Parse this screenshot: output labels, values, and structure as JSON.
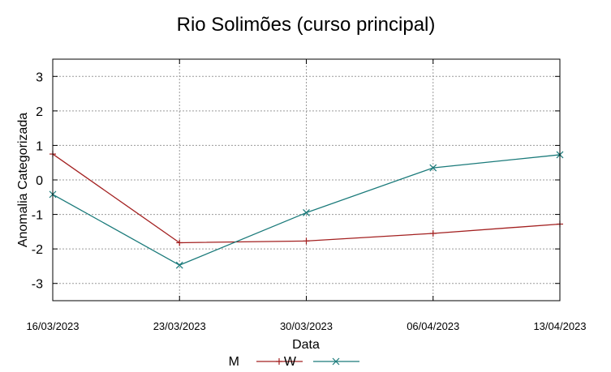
{
  "chart_data": {
    "type": "line",
    "title": "Rio Solimões (curso principal)",
    "xlabel": "Data",
    "ylabel": "Anomalia Categorizada",
    "categories": [
      "16/03/2023",
      "23/03/2023",
      "30/03/2023",
      "06/04/2023",
      "13/04/2023"
    ],
    "ylim": [
      -3.5,
      3.5
    ],
    "yticks": [
      3,
      2,
      1,
      0,
      -1,
      -2,
      -3
    ],
    "grid": true,
    "legend_position": "bottom",
    "series": [
      {
        "name": "M",
        "values": [
          0.75,
          -1.82,
          -1.77,
          -1.55,
          -1.28
        ],
        "color": "#a32020",
        "marker": "plus"
      },
      {
        "name": "W",
        "values": [
          -0.42,
          -2.47,
          -0.95,
          0.35,
          0.73
        ],
        "color": "#1a7a7a",
        "marker": "cross"
      }
    ]
  }
}
